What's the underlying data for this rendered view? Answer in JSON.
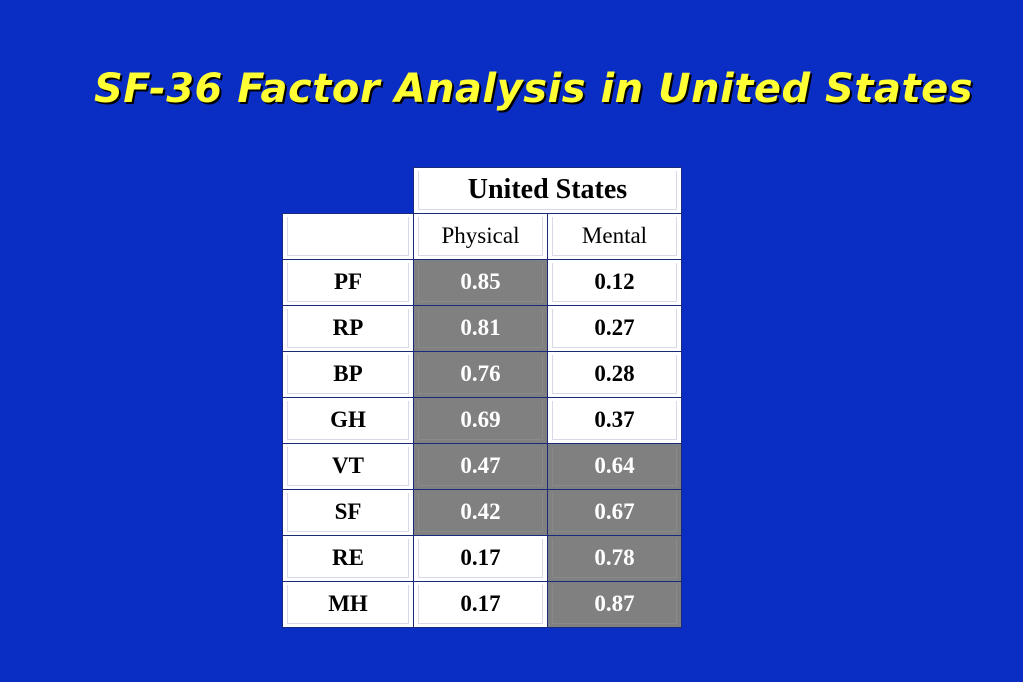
{
  "title": "SF-36 Factor Analysis in United States",
  "table": {
    "group_header": "United States",
    "columns": [
      "Physical",
      "Mental"
    ],
    "rows": [
      {
        "label": "PF",
        "physical": "0.85",
        "mental": "0.12",
        "physical_highlight": true,
        "mental_highlight": false
      },
      {
        "label": "RP",
        "physical": "0.81",
        "mental": "0.27",
        "physical_highlight": true,
        "mental_highlight": false
      },
      {
        "label": "BP",
        "physical": "0.76",
        "mental": "0.28",
        "physical_highlight": true,
        "mental_highlight": false
      },
      {
        "label": "GH",
        "physical": "0.69",
        "mental": "0.37",
        "physical_highlight": true,
        "mental_highlight": false
      },
      {
        "label": "VT",
        "physical": "0.47",
        "mental": "0.64",
        "physical_highlight": true,
        "mental_highlight": true
      },
      {
        "label": "SF",
        "physical": "0.42",
        "mental": "0.67",
        "physical_highlight": true,
        "mental_highlight": true
      },
      {
        "label": "RE",
        "physical": "0.17",
        "mental": "0.78",
        "physical_highlight": false,
        "mental_highlight": true
      },
      {
        "label": "MH",
        "physical": "0.17",
        "mental": "0.87",
        "physical_highlight": false,
        "mental_highlight": true
      }
    ]
  },
  "colors": {
    "background": "#0a2ec4",
    "title": "#ffff33",
    "highlight": "#808080"
  }
}
